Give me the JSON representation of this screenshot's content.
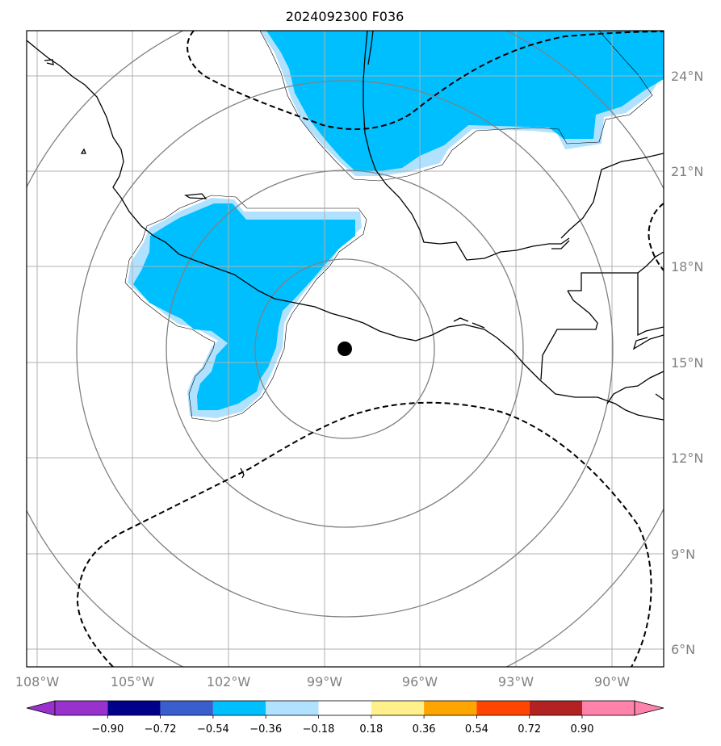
{
  "title": "2024092300 F036",
  "map": {
    "lon_range": [
      -108.5,
      -88.5
    ],
    "lat_range": [
      5.4,
      25.5
    ],
    "lon_ticks": [
      {
        "value": -108,
        "label": "108°W"
      },
      {
        "value": -105,
        "label": "105°W"
      },
      {
        "value": -102,
        "label": "102°W"
      },
      {
        "value": -99,
        "label": "99°W"
      },
      {
        "value": -96,
        "label": "96°W"
      },
      {
        "value": -93,
        "label": "93°W"
      },
      {
        "value": -90,
        "label": "90°W"
      }
    ],
    "lat_ticks": [
      {
        "value": 6,
        "label": "6°N"
      },
      {
        "value": 9,
        "label": "9°N"
      },
      {
        "value": 12,
        "label": "12°N"
      },
      {
        "value": 15,
        "label": "15°N"
      },
      {
        "value": 18,
        "label": "18°N"
      },
      {
        "value": 21,
        "label": "21°N"
      },
      {
        "value": 24,
        "label": "24°N"
      }
    ],
    "grid": true,
    "center": {
      "lon": -98.3,
      "lat": 15.45
    },
    "colors": {
      "coast": "#000000",
      "grid": "#b0b0b0",
      "range_rings": "#808080",
      "contour": "#000000",
      "fill_dark": "#00bfff",
      "fill_light": "#b0e2ff"
    }
  },
  "colorbar": {
    "levels": [
      "−0.90",
      "−0.72",
      "−0.54",
      "−0.36",
      "−0.18",
      "0.18",
      "0.36",
      "0.54",
      "0.72",
      "0.90"
    ],
    "colors": [
      "#9932cc",
      "#00008b",
      "#3a5fcd",
      "#00bfff",
      "#b0e2ff",
      "#ffffff",
      "#fff08c",
      "#ffa500",
      "#ff4500",
      "#b22222",
      "#ff82ab",
      "#ff82ab"
    ]
  }
}
